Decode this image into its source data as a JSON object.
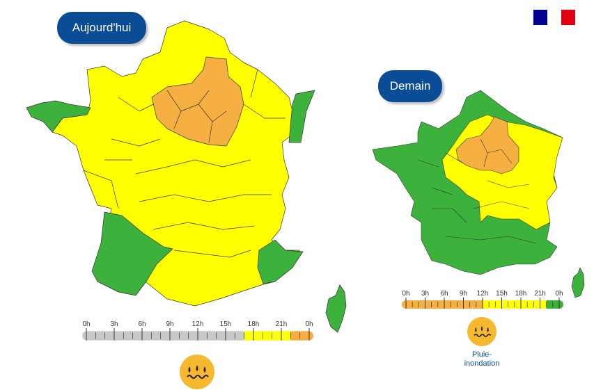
{
  "today": {
    "label": "Aujourd'hui",
    "timeline": {
      "ticks": [
        "0h",
        "3h",
        "6h",
        "9h",
        "12h",
        "15h",
        "18h",
        "21h",
        "0h"
      ],
      "segments": [
        {
          "from_hour": 0,
          "to_hour": 17,
          "color": "#c8c8c8"
        },
        {
          "from_hour": 17,
          "to_hour": 22,
          "color": "#ffff00"
        },
        {
          "from_hour": 22,
          "to_hour": 24,
          "color": "#f5b041"
        }
      ]
    },
    "hazard_icon": "rain-flood-icon"
  },
  "tomorrow": {
    "label": "Demain",
    "timeline": {
      "ticks": [
        "0h",
        "3h",
        "6h",
        "9h",
        "12h",
        "15h",
        "18h",
        "21h",
        "0h"
      ],
      "segments": [
        {
          "from_hour": 0,
          "to_hour": 12,
          "color": "#f5b041"
        },
        {
          "from_hour": 12,
          "to_hour": 22,
          "color": "#ffff00"
        },
        {
          "from_hour": 22,
          "to_hour": 24,
          "color": "#3cb23c"
        }
      ]
    },
    "hazard_icon": "rain-flood-icon",
    "hazard_caption": "Pluie-\ninondation"
  },
  "legend_colors": {
    "green": "#3cb23c",
    "yellow": "#ffff00",
    "orange": "#f5b041",
    "grey": "#c8c8c8",
    "brand_blue": "#0a4d96",
    "flag_blue": "#000091",
    "flag_red": "#e1000f"
  }
}
